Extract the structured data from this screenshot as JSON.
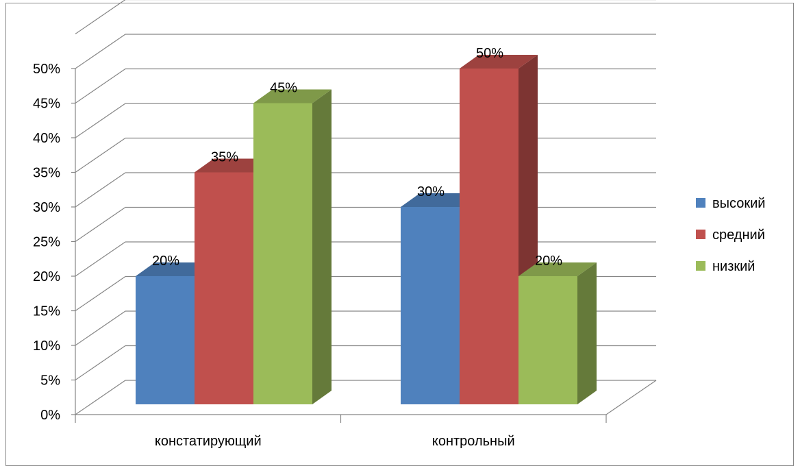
{
  "chart_data": {
    "type": "bar",
    "style": "3d-clustered-column",
    "categories": [
      "констатирующий",
      "контрольный"
    ],
    "series": [
      {
        "name": "высокий",
        "values": [
          20,
          30
        ],
        "color": "#4F81BD"
      },
      {
        "name": "средний",
        "values": [
          35,
          50
        ],
        "color": "#C0504D"
      },
      {
        "name": "низкий",
        "values": [
          45,
          20
        ],
        "color": "#9BBB59"
      }
    ],
    "data_labels": [
      [
        "20%",
        "30%"
      ],
      [
        "35%",
        "50%"
      ],
      [
        "45%",
        "20%"
      ]
    ],
    "y_ticks": [
      "0%",
      "5%",
      "10%",
      "15%",
      "20%",
      "25%",
      "30%",
      "35%",
      "40%",
      "45%",
      "50%"
    ],
    "ylim": [
      0,
      55
    ],
    "grid": true,
    "legend_position": "right",
    "title": "",
    "xlabel": "",
    "ylabel": ""
  }
}
